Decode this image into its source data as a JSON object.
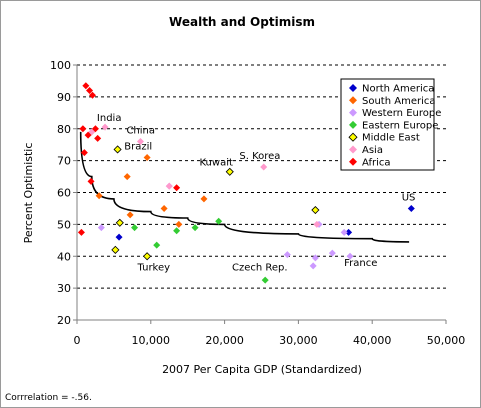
{
  "chart_data": {
    "type": "scatter",
    "title": "Wealth and Optimism",
    "xlabel": "2007 Per Capita GDP (Standardized)",
    "ylabel": "Percent Optimistic",
    "footnote": "Corrrelation = -.56.",
    "xlim": [
      0,
      50000
    ],
    "ylim": [
      20,
      100
    ],
    "x_ticks": [
      0,
      10000,
      20000,
      30000,
      40000,
      50000
    ],
    "x_tick_labels": [
      "0",
      "10,000",
      "20,000",
      "30,000",
      "40,000",
      "50,000"
    ],
    "y_ticks": [
      20,
      30,
      40,
      50,
      60,
      70,
      80,
      90,
      100
    ],
    "y_tick_labels": [
      "20",
      "30",
      "40",
      "50",
      "60",
      "70",
      "80",
      "90",
      "100"
    ],
    "grid": "horizontal-dashed",
    "legend_position": "top-right",
    "trendline": {
      "type": "curve",
      "points": [
        [
          500,
          79
        ],
        [
          2000,
          65
        ],
        [
          5000,
          58
        ],
        [
          10000,
          54
        ],
        [
          15000,
          52
        ],
        [
          20000,
          50
        ],
        [
          30000,
          47
        ],
        [
          40000,
          45.5
        ],
        [
          45000,
          44.5
        ]
      ]
    },
    "series": [
      {
        "name": "North America",
        "color": "#0000cc",
        "points": [
          [
            5700,
            46
          ],
          [
            36800,
            47.5
          ],
          [
            45300,
            55
          ]
        ]
      },
      {
        "name": "South America",
        "color": "#ff6600",
        "points": [
          [
            3000,
            59
          ],
          [
            6800,
            65
          ],
          [
            7200,
            53
          ],
          [
            9500,
            71
          ],
          [
            11800,
            55
          ],
          [
            13800,
            50
          ],
          [
            17200,
            58
          ]
        ]
      },
      {
        "name": "Western Europe",
        "color": "#cc99ff",
        "points": [
          [
            3300,
            49
          ],
          [
            12500,
            62
          ],
          [
            28500,
            40.5
          ],
          [
            32000,
            37
          ],
          [
            32300,
            39.5
          ],
          [
            32800,
            50
          ],
          [
            34600,
            41
          ],
          [
            36200,
            47.5
          ],
          [
            37000,
            40
          ]
        ]
      },
      {
        "name": "Eastern Europe",
        "color": "#33cc33",
        "points": [
          [
            7800,
            49
          ],
          [
            10800,
            43.5
          ],
          [
            13500,
            48
          ],
          [
            16000,
            49
          ],
          [
            19200,
            51
          ],
          [
            25500,
            32.5
          ]
        ]
      },
      {
        "name": "Middle East",
        "color": "#ffff00",
        "points": [
          [
            5200,
            42
          ],
          [
            5500,
            73.5
          ],
          [
            5800,
            50.5
          ],
          [
            9500,
            40
          ],
          [
            20700,
            66.5
          ],
          [
            32300,
            54.5
          ]
        ]
      },
      {
        "name": "Asia",
        "color": "#ff99cc",
        "points": [
          [
            2000,
            79
          ],
          [
            3800,
            80.5
          ],
          [
            8600,
            76
          ],
          [
            12500,
            62
          ],
          [
            25300,
            68
          ],
          [
            32500,
            50
          ]
        ]
      },
      {
        "name": "Africa",
        "color": "#ff0000",
        "points": [
          [
            600,
            47.5
          ],
          [
            800,
            80
          ],
          [
            1000,
            72.5
          ],
          [
            1200,
            93.5
          ],
          [
            1500,
            78
          ],
          [
            1700,
            92
          ],
          [
            1900,
            63.5
          ],
          [
            2100,
            90.5
          ],
          [
            2500,
            80
          ],
          [
            2800,
            77
          ],
          [
            13500,
            61.5
          ]
        ]
      }
    ],
    "annotations": [
      {
        "text": "India",
        "x": 2700,
        "y": 82.5
      },
      {
        "text": "China",
        "x": 6700,
        "y": 78.5
      },
      {
        "text": "Brazil",
        "x": 6400,
        "y": 73.5
      },
      {
        "text": "Kuwait",
        "x": 16600,
        "y": 68.5
      },
      {
        "text": "S. Korea",
        "x": 22000,
        "y": 70.5
      },
      {
        "text": "US",
        "x": 44000,
        "y": 57.5
      },
      {
        "text": "France",
        "x": 36200,
        "y": 37
      },
      {
        "text": "Czech Rep.",
        "x": 21000,
        "y": 35.5
      },
      {
        "text": "Turkey",
        "x": 8200,
        "y": 35.5
      }
    ]
  }
}
